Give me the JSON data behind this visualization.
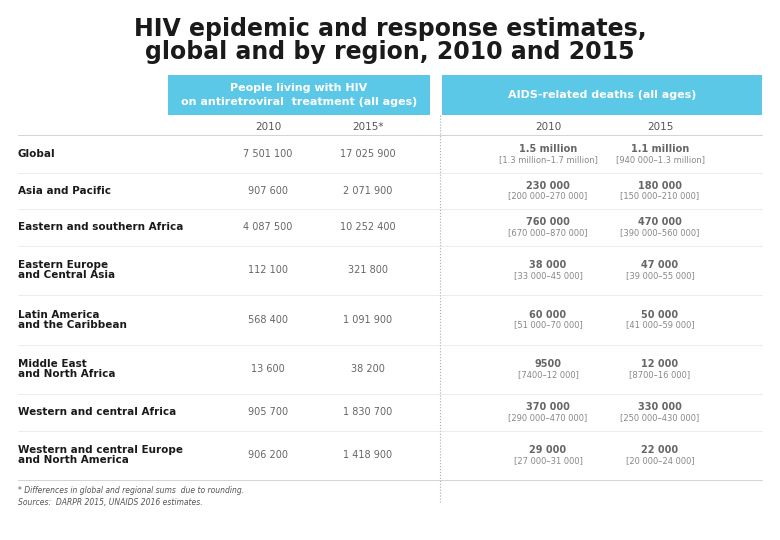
{
  "title_line1": "HIV epidemic and response estimates,",
  "title_line2": "global and by region, 2010 and 2015",
  "header_col1": "People living with HIV\non antiretroviral  treatment (all ages)",
  "header_col2": "AIDS-related deaths (all ages)",
  "footnote1": "* Differences in global and regional sums  due to rounding.",
  "footnote2": "Sources:  DARPR 2015, UNAIDS 2016 estimates.",
  "header_bg": "#5bc8e8",
  "bg_color": "#ffffff",
  "title_color": "#1a1a1a",
  "region_color": "#1a1a1a",
  "value_color": "#666666",
  "subheader_color": "#555555",
  "sep_color": "#cccccc",
  "divider_color": "#aaaaaa",
  "rows": [
    {
      "region": "Global",
      "region2": "",
      "arv_2010": "7 501 100",
      "arv_2015": "17 025 900",
      "aids_2010_val": "1.5 million",
      "aids_2010_range": "[1.3 million–1.7 million]",
      "aids_2015_val": "1.1 million",
      "aids_2015_range": "[940 000–1.3 million]"
    },
    {
      "region": "Asia and Pacific",
      "region2": "",
      "arv_2010": "907 600",
      "arv_2015": "2 071 900",
      "aids_2010_val": "230 000",
      "aids_2010_range": "[200 000–270 000]",
      "aids_2015_val": "180 000",
      "aids_2015_range": "[150 000–210 000]"
    },
    {
      "region": "Eastern and southern Africa",
      "region2": "",
      "arv_2010": "4 087 500",
      "arv_2015": "10 252 400",
      "aids_2010_val": "760 000",
      "aids_2010_range": "[670 000–870 000]",
      "aids_2015_val": "470 000",
      "aids_2015_range": "[390 000–560 000]"
    },
    {
      "region": "Eastern Europe",
      "region2": "and Central Asia",
      "arv_2010": "112 100",
      "arv_2015": "321 800",
      "aids_2010_val": "38 000",
      "aids_2010_range": "[33 000–45 000]",
      "aids_2015_val": "47 000",
      "aids_2015_range": "[39 000–55 000]"
    },
    {
      "region": "Latin America",
      "region2": "and the Caribbean",
      "arv_2010": "568 400",
      "arv_2015": "1 091 900",
      "aids_2010_val": "60 000",
      "aids_2010_range": "[51 000–70 000]",
      "aids_2015_val": "50 000",
      "aids_2015_range": "[41 000–59 000]"
    },
    {
      "region": "Middle East",
      "region2": "and North Africa",
      "arv_2010": "13 600",
      "arv_2015": "38 200",
      "aids_2010_val": "9500",
      "aids_2010_range": "[7400–12 000]",
      "aids_2015_val": "12 000",
      "aids_2015_range": "[8700–16 000]"
    },
    {
      "region": "Western and central Africa",
      "region2": "",
      "arv_2010": "905 700",
      "arv_2015": "1 830 700",
      "aids_2010_val": "370 000",
      "aids_2010_range": "[290 000–470 000]",
      "aids_2015_val": "330 000",
      "aids_2015_range": "[250 000–430 000]"
    },
    {
      "region": "Western and central Europe",
      "region2": "and North America",
      "arv_2010": "906 200",
      "arv_2015": "1 418 900",
      "aids_2010_val": "29 000",
      "aids_2010_range": "[27 000–31 000]",
      "aids_2015_val": "22 000",
      "aids_2015_range": "[20 000–24 000]"
    }
  ]
}
